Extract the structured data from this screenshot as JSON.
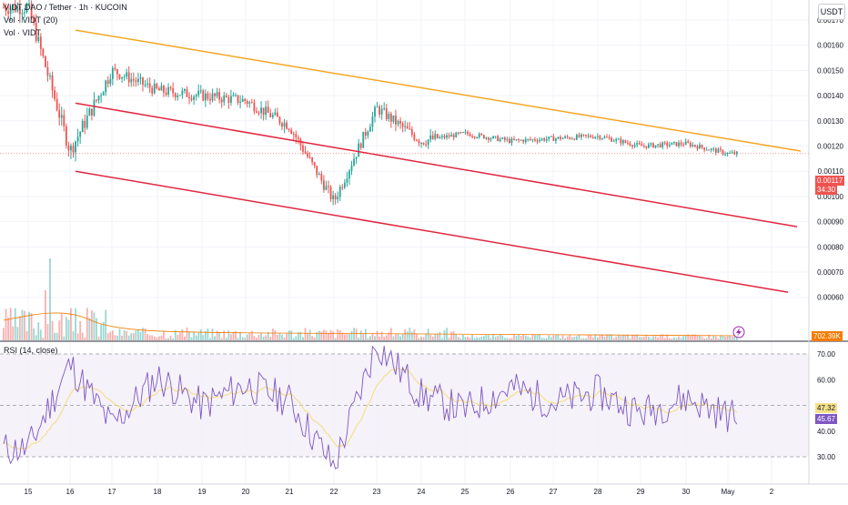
{
  "header": {
    "symbol_line": "VIDT DAO / Tether · 1h · KUCOIN",
    "vol_line_1": "Vol · VIDT (20)",
    "vol_line_2": "Vol · VIDT",
    "currency": "USDT"
  },
  "colors": {
    "up": "#26a69a",
    "down": "#ef5350",
    "resistance": "#f5a623",
    "channel": "#e0263f",
    "rsi_line": "#7e57c2",
    "rsi_ma": "#f5e08a",
    "rsi_band": "#ede7f6"
  },
  "price_axis": {
    "ticks": [
      "0.00170",
      "0.00160",
      "0.00150",
      "0.00140",
      "0.00130",
      "0.00120",
      "0.00110",
      "0.00100",
      "0.00090",
      "0.00080",
      "0.00070",
      "0.00060"
    ],
    "last_price": "0.00117",
    "countdown": "34:30",
    "volume_label": "702.39K"
  },
  "rsi_panel": {
    "title": "RSI (14, close)",
    "ticks": [
      "70.00",
      "60.00",
      "40.00",
      "30.00"
    ],
    "value": "45.67",
    "ma_value": "47.32",
    "upper": 70,
    "lower": 30,
    "mid": 50
  },
  "time_axis": {
    "labels": [
      "15",
      "16",
      "17",
      "18",
      "19",
      "20",
      "21",
      "22",
      "23",
      "24",
      "25",
      "26",
      "27",
      "28",
      "29",
      "30",
      "May",
      "2"
    ]
  },
  "chart_data": [
    {
      "type": "line",
      "title": "VIDT DAO / Tether · 1h · KUCOIN",
      "xlabel": "",
      "ylabel": "",
      "x_categories": [
        "15",
        "16",
        "17",
        "18",
        "19",
        "20",
        "21",
        "22",
        "23",
        "24",
        "25",
        "26",
        "27",
        "28",
        "29",
        "30",
        "May"
      ],
      "series": [
        {
          "values": [
            0.00175,
            0.00118,
            0.0015,
            0.00142,
            0.0014,
            0.00138,
            0.00128,
            0.00098,
            0.00135,
            0.00122,
            0.00125,
            0.00122,
            0.00123,
            0.00124,
            0.0012,
            0.00121,
            0.00117
          ]
        }
      ],
      "trendlines": [
        {
          "from": [
            "16",
            0.00166
          ],
          "to": [
            "2",
            0.00118
          ]
        },
        {
          "from": [
            "16",
            0.00137
          ],
          "to": [
            "2",
            0.00088
          ]
        },
        {
          "from": [
            "16",
            0.0011
          ],
          "to": [
            "2",
            0.00062
          ]
        }
      ],
      "ylim": [
        0.00057,
        0.00177
      ]
    },
    {
      "type": "line",
      "title": "RSI (14, close)",
      "x_categories": [
        "15",
        "16",
        "17",
        "18",
        "19",
        "20",
        "21",
        "22",
        "23",
        "24",
        "25",
        "26",
        "27",
        "28",
        "29",
        "30",
        "May"
      ],
      "series": [
        {
          "values": [
            33,
            66,
            42,
            61,
            50,
            58,
            52,
            26,
            74,
            54,
            48,
            57,
            51,
            55,
            47,
            53,
            46
          ]
        }
      ],
      "ylim": [
        25,
        75
      ]
    }
  ]
}
